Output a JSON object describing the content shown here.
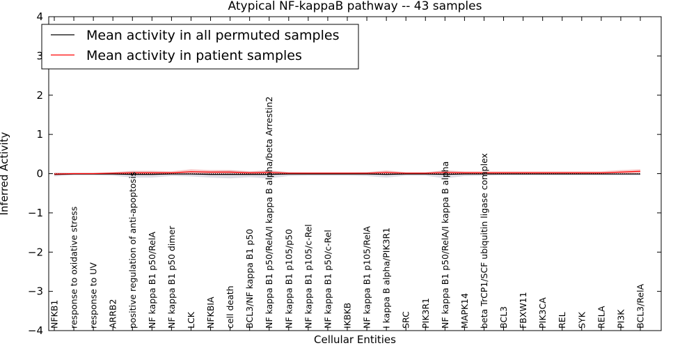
{
  "chart_data": {
    "type": "line",
    "title": "Atypical NF-kappaB pathway -- 43 samples",
    "xlabel": "Cellular Entities",
    "ylabel": "Inferred Activity",
    "ylim": [
      -4,
      4
    ],
    "yticks": [
      -4,
      -3,
      -2,
      -1,
      0,
      1,
      2,
      3,
      4
    ],
    "grid": false,
    "legend_position": "upper-left",
    "categories": [
      "NFKB1",
      "response to oxidative stress",
      "response to UV",
      "ARRB2",
      "positive regulation of anti-apoptosis",
      "NF kappa B1 p50/RelA",
      "NF kappa B1 p50 dimer",
      "LCK",
      "NFKBIA",
      "cell death",
      "BCL3/NF kappa B1 p50",
      "NF kappa B1 p50/RelA/I kappa B alpha/beta Arrestin2",
      "NF kappa B1 p105/p50",
      "NF kappa B1 p105/c-Rel",
      "NF kappa B1 p50/c-Rel",
      "IKBKB",
      "NF kappa B1 p105/RelA",
      "I kappa B alpha/PIK3R1",
      "SRC",
      "PIK3R1",
      "NF kappa B1 p50/RelA/I kappa B alpha",
      "MAPK14",
      "beta TrCP1/SCF ubiquitin ligase complex",
      "BCL3",
      "FBXW11",
      "PIK3CA",
      "REL",
      "SYK",
      "RELA",
      "PI3K",
      "BCL3/RelA"
    ],
    "series": [
      {
        "name": "Mean activity in all permuted samples",
        "color": "#000000",
        "band_color": "#9a9aae",
        "values": [
          -0.02,
          -0.01,
          -0.01,
          -0.01,
          -0.02,
          -0.02,
          -0.01,
          -0.01,
          -0.02,
          -0.02,
          -0.02,
          -0.02,
          -0.01,
          -0.01,
          -0.01,
          -0.01,
          -0.01,
          -0.02,
          -0.01,
          -0.01,
          -0.02,
          -0.01,
          -0.01,
          -0.01,
          -0.01,
          -0.01,
          -0.01,
          -0.01,
          -0.01,
          -0.01,
          -0.01
        ],
        "spread": [
          0.05,
          0.03,
          0.03,
          0.04,
          0.08,
          0.08,
          0.05,
          0.06,
          0.08,
          0.1,
          0.07,
          0.1,
          0.05,
          0.04,
          0.04,
          0.04,
          0.05,
          0.08,
          0.04,
          0.04,
          0.1,
          0.05,
          0.04,
          0.03,
          0.03,
          0.03,
          0.03,
          0.03,
          0.03,
          0.03,
          0.03
        ]
      },
      {
        "name": "Mean activity in patient samples",
        "color": "#ff0000",
        "band_color": "#f08080",
        "values": [
          -0.01,
          0.0,
          0.0,
          0.01,
          0.02,
          0.02,
          0.02,
          0.05,
          0.04,
          0.04,
          0.02,
          0.03,
          0.01,
          0.01,
          0.01,
          0.01,
          0.01,
          0.03,
          0.01,
          0.01,
          0.03,
          0.02,
          0.02,
          0.02,
          0.02,
          0.02,
          0.02,
          0.02,
          0.02,
          0.04,
          0.06
        ],
        "spread": [
          0.03,
          0.02,
          0.02,
          0.03,
          0.05,
          0.05,
          0.04,
          0.06,
          0.05,
          0.05,
          0.04,
          0.05,
          0.03,
          0.03,
          0.03,
          0.03,
          0.03,
          0.05,
          0.03,
          0.03,
          0.05,
          0.04,
          0.04,
          0.04,
          0.04,
          0.04,
          0.04,
          0.04,
          0.04,
          0.05,
          0.05
        ]
      }
    ],
    "reference_line": {
      "y": 0,
      "style": "dotted"
    }
  }
}
